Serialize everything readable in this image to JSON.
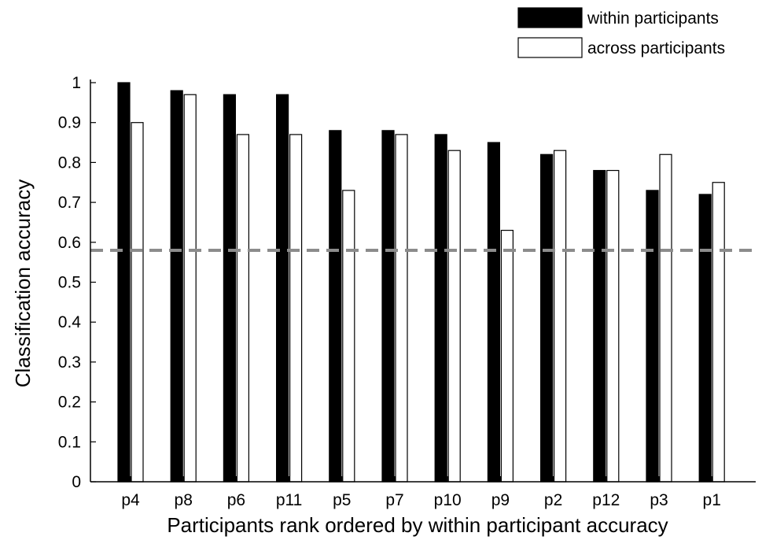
{
  "chart_data": {
    "type": "bar",
    "categories": [
      "p4",
      "p8",
      "p6",
      "p11",
      "p5",
      "p7",
      "p10",
      "p9",
      "p2",
      "p12",
      "p3",
      "p1"
    ],
    "series": [
      {
        "name": "within participants",
        "color": "#000000",
        "values": [
          1.0,
          0.98,
          0.97,
          0.97,
          0.88,
          0.88,
          0.87,
          0.85,
          0.82,
          0.78,
          0.73,
          0.72
        ]
      },
      {
        "name": "across participants",
        "color": "#ffffff",
        "values": [
          0.9,
          0.97,
          0.87,
          0.87,
          0.73,
          0.87,
          0.83,
          0.63,
          0.83,
          0.78,
          0.82,
          0.75
        ]
      }
    ],
    "xlabel": "Participants rank ordered by within participant accuracy",
    "ylabel": "Classification accuracy",
    "ylim": [
      0,
      1
    ],
    "yticks": [
      "0",
      "0.1",
      "0.2",
      "0.3",
      "0.4",
      "0.5",
      "0.6",
      "0.7",
      "0.8",
      "0.9",
      "1"
    ],
    "reference_line": {
      "value": 0.58,
      "style": "dashed",
      "color": "#8c8c8c"
    },
    "legend_position": "top-right",
    "grid": false
  }
}
